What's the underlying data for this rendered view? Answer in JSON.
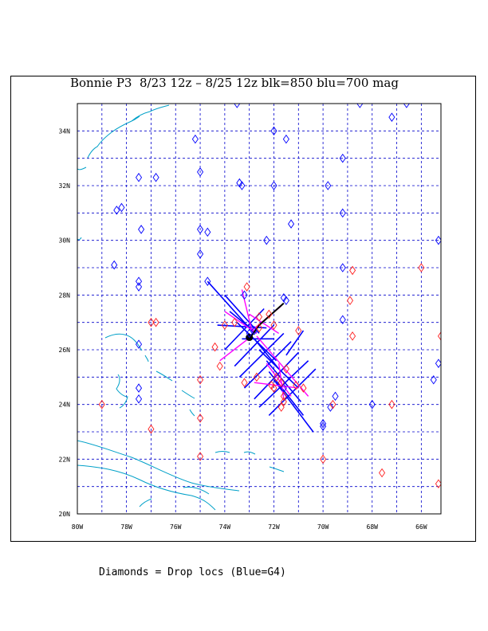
{
  "title": "Bonnie P3  8/23 12z – 8/25 12z blk=850 blu=700 mag",
  "caption": "Diamonds = Drop locs (Blue=G4)",
  "colors": {
    "grid": "#0000cc",
    "coast": "#00a0c8",
    "blue": "#0000ff",
    "red": "#ff2020",
    "magenta": "#ff00ff",
    "black": "#000000"
  },
  "x_ticks": [
    "80W",
    "78W",
    "76W",
    "74W",
    "72W",
    "70W",
    "68W",
    "66W"
  ],
  "y_ticks": [
    "20N",
    "22N",
    "24N",
    "26N",
    "28N",
    "30N",
    "32N",
    "34N"
  ],
  "x_range": [
    -80,
    -65.2
  ],
  "y_range": [
    20,
    35
  ],
  "blue_drops": [
    [
      -73.5,
      35
    ],
    [
      -68.5,
      35
    ],
    [
      -66.6,
      35
    ],
    [
      -67.2,
      34.5
    ],
    [
      -75.2,
      33.7
    ],
    [
      -72,
      34
    ],
    [
      -71.5,
      33.7
    ],
    [
      -69.2,
      33
    ],
    [
      -75,
      32.5
    ],
    [
      -77.5,
      32.3
    ],
    [
      -76.8,
      32.3
    ],
    [
      -73.3,
      32
    ],
    [
      -73.4,
      32.1
    ],
    [
      -72,
      32
    ],
    [
      -69.8,
      32
    ],
    [
      -78.4,
      31.1
    ],
    [
      -78.2,
      31.2
    ],
    [
      -69.2,
      31
    ],
    [
      -71.3,
      30.6
    ],
    [
      -77.4,
      30.4
    ],
    [
      -75,
      30.4
    ],
    [
      -74.7,
      30.3
    ],
    [
      -72.3,
      30
    ],
    [
      -65.3,
      30
    ],
    [
      -75,
      29.5
    ],
    [
      -78.5,
      29.1
    ],
    [
      -69.2,
      29
    ],
    [
      -74.7,
      28.5
    ],
    [
      -77.5,
      28.5
    ],
    [
      -77.5,
      28.3
    ],
    [
      -73.2,
      28
    ],
    [
      -71.5,
      27.8
    ],
    [
      -71.6,
      27.9
    ],
    [
      -69.2,
      27.1
    ],
    [
      -77.5,
      26.2
    ],
    [
      -65.3,
      25.5
    ],
    [
      -77.5,
      24.6
    ],
    [
      -77.5,
      24.2
    ],
    [
      -69.5,
      24.3
    ],
    [
      -69.7,
      23.9
    ],
    [
      -68,
      24
    ],
    [
      -70,
      23.3
    ],
    [
      -70,
      23.2
    ],
    [
      -65.5,
      24.9
    ],
    [
      -73,
      26.6
    ],
    [
      -72.8,
      26.7
    ],
    [
      -71.6,
      24.6
    ]
  ],
  "red_drops": [
    [
      -73.1,
      28.3
    ],
    [
      -71,
      26.7
    ],
    [
      -72.6,
      26.8
    ],
    [
      -72,
      26.9
    ],
    [
      -72.6,
      27.2
    ],
    [
      -72.2,
      27.3
    ],
    [
      -73.6,
      27.0
    ],
    [
      -74,
      26.9
    ],
    [
      -76.8,
      27
    ],
    [
      -77,
      27
    ],
    [
      -74.4,
      26.1
    ],
    [
      -74.2,
      25.4
    ],
    [
      -73.2,
      24.8
    ],
    [
      -72.7,
      25
    ],
    [
      -71.5,
      25.3
    ],
    [
      -71.9,
      25
    ],
    [
      -72,
      24.6
    ],
    [
      -71.6,
      24.3
    ],
    [
      -71.6,
      24.1
    ],
    [
      -71.7,
      23.9
    ],
    [
      -71.1,
      24.7
    ],
    [
      -70.8,
      24.6
    ],
    [
      -69.6,
      24
    ],
    [
      -79,
      24
    ],
    [
      -77,
      23.1
    ],
    [
      -75,
      24.9
    ],
    [
      -75,
      23.5
    ],
    [
      -75,
      22.1
    ],
    [
      -70,
      22
    ],
    [
      -67.6,
      21.5
    ],
    [
      -65.3,
      21.1
    ],
    [
      -67.2,
      24
    ],
    [
      -68.8,
      28.9
    ],
    [
      -68.9,
      27.8
    ],
    [
      -68.8,
      26.5
    ],
    [
      -66,
      29
    ],
    [
      -65.2,
      26.5
    ],
    [
      -72.1,
      24.7
    ],
    [
      -71.7,
      24.8
    ]
  ],
  "blue_tracks": [
    [
      [
        -74.7,
        28.5
      ],
      [
        -72.8,
        26.6
      ]
    ],
    [
      [
        -74.0,
        28.0
      ],
      [
        -72.6,
        26.6
      ]
    ],
    [
      [
        -73.8,
        27.4
      ],
      [
        -72.7,
        26.6
      ]
    ],
    [
      [
        -73.5,
        27.0
      ],
      [
        -71.9,
        25.6
      ]
    ],
    [
      [
        -72.8,
        26.4
      ],
      [
        -71.8,
        25.3
      ]
    ],
    [
      [
        -72.6,
        26.0
      ],
      [
        -71.0,
        24.6
      ]
    ],
    [
      [
        -72.3,
        25.6
      ],
      [
        -70.9,
        24.1
      ]
    ],
    [
      [
        -72.2,
        25.2
      ],
      [
        -70.8,
        23.6
      ]
    ],
    [
      [
        -72.0,
        24.9
      ],
      [
        -70.4,
        23.0
      ]
    ],
    [
      [
        -74.0,
        26.0
      ],
      [
        -72.4,
        27.5
      ]
    ],
    [
      [
        -73.6,
        25.4
      ],
      [
        -72.0,
        26.9
      ]
    ],
    [
      [
        -73.4,
        25.0
      ],
      [
        -71.6,
        26.6
      ]
    ],
    [
      [
        -73.2,
        24.6
      ],
      [
        -71.3,
        26.3
      ]
    ],
    [
      [
        -72.8,
        24.2
      ],
      [
        -71.0,
        25.9
      ]
    ],
    [
      [
        -72.6,
        23.9
      ],
      [
        -70.6,
        25.6
      ]
    ],
    [
      [
        -72.2,
        23.6
      ],
      [
        -70.3,
        25.3
      ]
    ],
    [
      [
        -71.5,
        25.8
      ],
      [
        -70.8,
        26.7
      ]
    ],
    [
      [
        -73.3,
        26.4
      ],
      [
        -72.0,
        26.4
      ]
    ],
    [
      [
        -74.3,
        26.9
      ],
      [
        -72.3,
        26.8
      ]
    ]
  ],
  "magenta_tracks": [
    [
      [
        -74.0,
        27.4
      ],
      [
        -72.7,
        26.6
      ]
    ],
    [
      [
        -73.3,
        28.2
      ],
      [
        -72.9,
        26.7
      ]
    ],
    [
      [
        -72.9,
        26.7
      ],
      [
        -71.7,
        27.6
      ]
    ],
    [
      [
        -74.2,
        25.6
      ],
      [
        -72.9,
        26.5
      ]
    ],
    [
      [
        -72.7,
        26.5
      ],
      [
        -70.6,
        24.3
      ]
    ],
    [
      [
        -72.8,
        24.8
      ],
      [
        -71.0,
        24.6
      ]
    ],
    [
      [
        -72.3,
        25.5
      ],
      [
        -71.3,
        24.3
      ]
    ],
    [
      [
        -71.8,
        25.5
      ],
      [
        -71.6,
        24.2
      ]
    ],
    [
      [
        -73.0,
        27.3
      ],
      [
        -71.8,
        26.6
      ]
    ]
  ],
  "black_track": [
    [
      -73.0,
      26.4
    ],
    [
      -72.6,
      26.9
    ],
    [
      -72.1,
      27.3
    ],
    [
      -71.6,
      27.7
    ]
  ],
  "black_center": [
    -73.0,
    26.45
  ]
}
